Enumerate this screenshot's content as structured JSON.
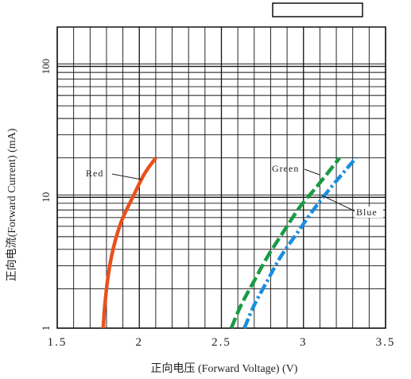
{
  "chart_data": {
    "type": "line",
    "xlabel": "正向电压 (Forward Voltage) (V)",
    "ylabel": "正向电流(Forward Current) (mA)",
    "xlim": [
      1.5,
      3.5
    ],
    "ylim": [
      1,
      200
    ],
    "y_scale": "log",
    "grid": true,
    "x_ticks": [
      "1.5",
      "2",
      "2.5",
      "3",
      "3.5"
    ],
    "y_ticks": [
      "1",
      "10",
      "100"
    ],
    "series": [
      {
        "name": "Red",
        "color": "#e8501e",
        "dash": "solid",
        "x": [
          1.78,
          1.79,
          1.81,
          1.84,
          1.89,
          1.96,
          2.03,
          2.1
        ],
        "y": [
          1,
          1.5,
          2.5,
          4,
          6.5,
          10,
          15,
          20
        ]
      },
      {
        "name": "Green",
        "color": "#1a9a46",
        "dash": "dash",
        "x": [
          2.56,
          2.62,
          2.7,
          2.78,
          2.88,
          2.98,
          3.08,
          3.22
        ],
        "y": [
          1,
          1.5,
          2.3,
          3.5,
          5.5,
          8.5,
          12,
          20
        ]
      },
      {
        "name": "Blue",
        "color": "#1a8de0",
        "dash": "dashdot",
        "x": [
          2.64,
          2.7,
          2.78,
          2.86,
          2.96,
          3.06,
          3.17,
          3.32
        ],
        "y": [
          1,
          1.5,
          2.3,
          3.5,
          5.3,
          8,
          12,
          20
        ]
      }
    ]
  }
}
